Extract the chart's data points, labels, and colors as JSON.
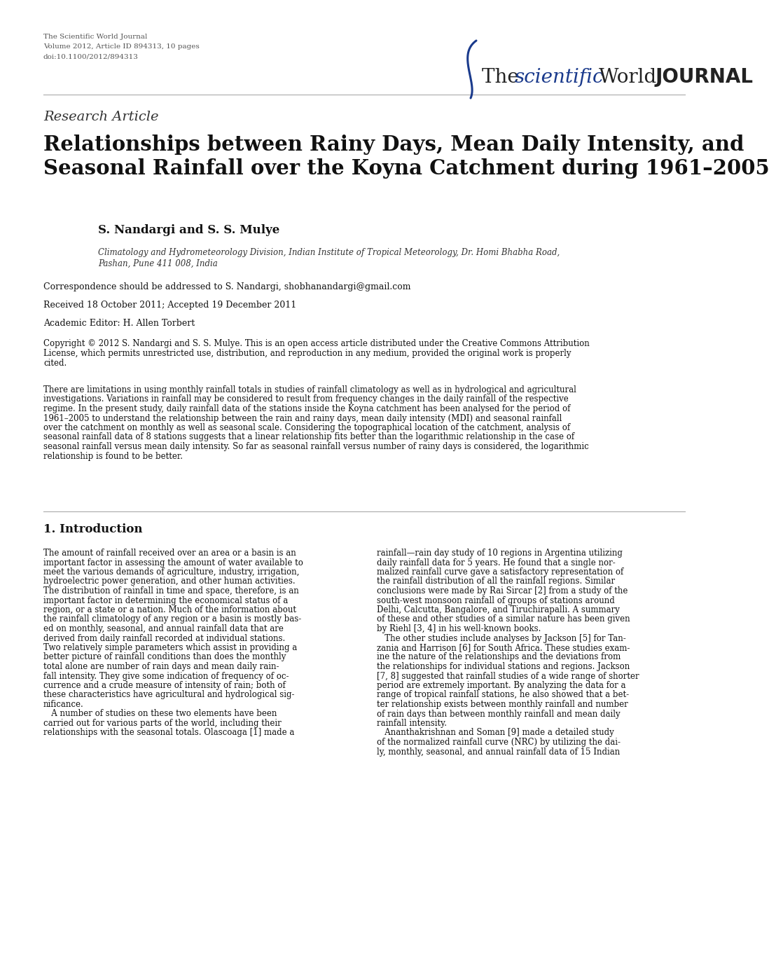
{
  "bg_color": "#ffffff",
  "header_left": "The Scientific World Journal\nVolume 2012, Article ID 894313, 10 pages\ndoi:10.1100/2012/894313",
  "section_label": "Research Article",
  "title_line1": "Relationships between Rainy Days, Mean Daily Intensity, and",
  "title_line2": "Seasonal Rainfall over the Koyna Catchment during 1961–2005",
  "authors": "S. Nandargi and S. S. Mulye",
  "affiliation_line1": "Climatology and Hydrometeorology Division, Indian Institute of Tropical Meteorology, Dr. Homi Bhabha Road,",
  "affiliation_line2": "Pashan, Pune 411 008, India",
  "correspondence": "Correspondence should be addressed to S. Nandargi, shobhanandargi@gmail.com",
  "received": "Received 18 October 2011; Accepted 19 December 2011",
  "editor": "Academic Editor: H. Allen Torbert",
  "copyright_line1": "Copyright © 2012 S. Nandargi and S. S. Mulye. This is an open access article distributed under the Creative Commons Attribution",
  "copyright_line2": "License, which permits unrestricted use, distribution, and reproduction in any medium, provided the original work is properly",
  "copyright_line3": "cited.",
  "abstract_lines": [
    "There are limitations in using monthly rainfall totals in studies of rainfall climatology as well as in hydrological and agricultural",
    "investigations. Variations in rainfall may be considered to result from frequency changes in the daily rainfall of the respective",
    "regime. In the present study, daily rainfall data of the stations inside the Koyna catchment has been analysed for the period of",
    "1961–2005 to understand the relationship between the rain and rainy days, mean daily intensity (MDI) and seasonal rainfall",
    "over the catchment on monthly as well as seasonal scale. Considering the topographical location of the catchment, analysis of",
    "seasonal rainfall data of 8 stations suggests that a linear relationship fits better than the logarithmic relationship in the case of",
    "seasonal rainfall versus mean daily intensity. So far as seasonal rainfall versus number of rainy days is considered, the logarithmic",
    "relationship is found to be better."
  ],
  "intro_heading": "1. Introduction",
  "intro_left_lines": [
    "The amount of rainfall received over an area or a basin is an",
    "important factor in assessing the amount of water available to",
    "meet the various demands of agriculture, industry, irrigation,",
    "hydroelectric power generation, and other human activities.",
    "The distribution of rainfall in time and space, therefore, is an",
    "important factor in determining the economical status of a",
    "region, or a state or a nation. Much of the information about",
    "the rainfall climatology of any region or a basin is mostly bas-",
    "ed on monthly, seasonal, and annual rainfall data that are",
    "derived from daily rainfall recorded at individual stations.",
    "Two relatively simple parameters which assist in providing a",
    "better picture of rainfall conditions than does the monthly",
    "total alone are number of rain days and mean daily rain-",
    "fall intensity. They give some indication of frequency of oc-",
    "currence and a crude measure of intensity of rain; both of",
    "these characteristics have agricultural and hydrological sig-",
    "nificance.",
    "   A number of studies on these two elements have been",
    "carried out for various parts of the world, including their",
    "relationships with the seasonal totals. Olascoaga [1] made a"
  ],
  "intro_right_lines": [
    "rainfall—rain day study of 10 regions in Argentina utilizing",
    "daily rainfall data for 5 years. He found that a single nor-",
    "malized rainfall curve gave a satisfactory representation of",
    "the rainfall distribution of all the rainfall regions. Similar",
    "conclusions were made by Rai Sircar [2] from a study of the",
    "south-west monsoon rainfall of groups of stations around",
    "Delhi, Calcutta, Bangalore, and Tiruchirapalli. A summary",
    "of these and other studies of a similar nature has been given",
    "by Riehl [3, 4] in his well-known books.",
    "   The other studies include analyses by Jackson [5] for Tan-",
    "zania and Harrison [6] for South Africa. These studies exam-",
    "ine the nature of the relationships and the deviations from",
    "the relationships for individual stations and regions. Jackson",
    "[7, 8] suggested that rainfall studies of a wide range of shorter",
    "period are extremely important. By analyzing the data for a",
    "range of tropical rainfall stations, he also showed that a bet-",
    "ter relationship exists between monthly rainfall and number",
    "of rain days than between monthly rainfall and mean daily",
    "rainfall intensity.",
    "   Ananthakrishnan and Soman [9] made a detailed study",
    "of the normalized rainfall curve (NRC) by utilizing the dai-",
    "ly, monthly, seasonal, and annual rainfall data of 15 Indian"
  ],
  "logo_curve_color": "#1a3a8c",
  "logo_text_color": "#222222",
  "logo_scientific_color": "#1a3a8c",
  "separator_color": "#aaaaaa",
  "body_text_color": "#111111",
  "header_text_color": "#555555"
}
